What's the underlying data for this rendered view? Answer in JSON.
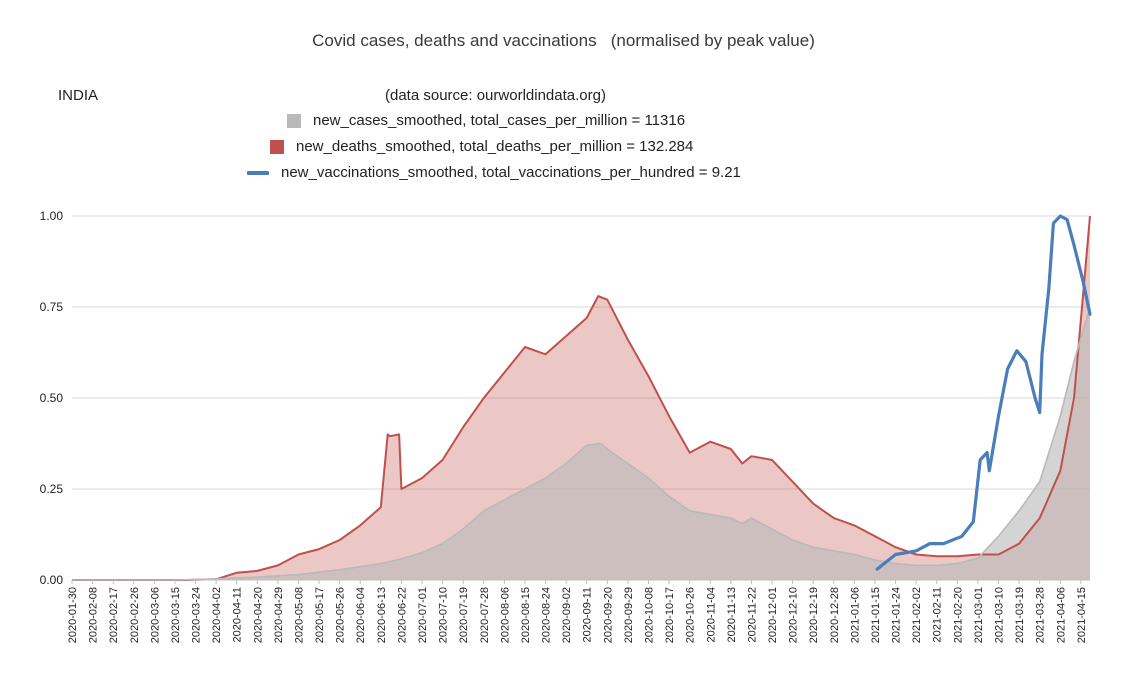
{
  "title": "Covid cases, deaths and vaccinations   (normalised by peak value)",
  "country": "INDIA",
  "source": "(data source: ourworldindata.org)",
  "colors": {
    "cases": "#b9b9b9",
    "deaths": "#c0504d",
    "vaccinations": "#4a7ebb"
  },
  "legend": [
    {
      "label": "new_cases_smoothed,  total_cases_per_million = 11316",
      "kind": "square",
      "color": "#b9b9b9"
    },
    {
      "label": "new_deaths_smoothed,  total_deaths_per_million = 132.284",
      "kind": "square",
      "color": "#c0504d"
    },
    {
      "label": "new_vaccinations_smoothed,  total_vaccinations_per_hundred = 9.21",
      "kind": "line",
      "color": "#4a7ebb"
    }
  ],
  "chart_data": {
    "type": "area",
    "ylim": [
      0,
      1
    ],
    "yticks": [
      "1.00",
      "0.75",
      "0.50",
      "0.25",
      "0.00"
    ],
    "ytick_values": [
      1.0,
      0.75,
      0.5,
      0.25,
      0.0
    ],
    "grid": true,
    "xlim": [
      "2020-01-30",
      "2021-04-19"
    ],
    "xticks": [
      "2020-01-30",
      "2020-02-08",
      "2020-02-17",
      "2020-02-26",
      "2020-03-06",
      "2020-03-15",
      "2020-03-24",
      "2020-04-02",
      "2020-04-11",
      "2020-04-20",
      "2020-04-29",
      "2020-05-08",
      "2020-05-17",
      "2020-05-26",
      "2020-06-04",
      "2020-06-13",
      "2020-06-22",
      "2020-07-01",
      "2020-07-10",
      "2020-07-19",
      "2020-07-28",
      "2020-08-06",
      "2020-08-15",
      "2020-08-24",
      "2020-09-02",
      "2020-09-11",
      "2020-09-20",
      "2020-09-29",
      "2020-10-08",
      "2020-10-17",
      "2020-10-26",
      "2020-11-04",
      "2020-11-13",
      "2020-11-22",
      "2020-12-01",
      "2020-12-10",
      "2020-12-19",
      "2020-12-28",
      "2021-01-06",
      "2021-01-15",
      "2021-01-24",
      "2021-02-02",
      "2021-02-11",
      "2021-02-20",
      "2021-03-01",
      "2021-03-10",
      "2021-03-19",
      "2021-03-28",
      "2021-04-06",
      "2021-04-15"
    ],
    "series": [
      {
        "name": "new_cases_smoothed",
        "style": "area",
        "x": [
          "2020-01-30",
          "2020-03-15",
          "2020-04-02",
          "2020-04-20",
          "2020-05-08",
          "2020-05-26",
          "2020-06-13",
          "2020-06-22",
          "2020-07-01",
          "2020-07-10",
          "2020-07-19",
          "2020-07-28",
          "2020-08-06",
          "2020-08-15",
          "2020-08-24",
          "2020-09-02",
          "2020-09-11",
          "2020-09-17",
          "2020-09-22",
          "2020-09-29",
          "2020-10-08",
          "2020-10-17",
          "2020-10-26",
          "2020-11-04",
          "2020-11-13",
          "2020-11-18",
          "2020-11-22",
          "2020-11-28",
          "2020-12-10",
          "2020-12-19",
          "2020-12-28",
          "2021-01-06",
          "2021-01-15",
          "2021-01-24",
          "2021-02-02",
          "2021-02-11",
          "2021-02-20",
          "2021-03-01",
          "2021-03-10",
          "2021-03-19",
          "2021-03-28",
          "2021-04-06",
          "2021-04-12",
          "2021-04-19"
        ],
        "y": [
          0,
          0,
          0.003,
          0.008,
          0.015,
          0.028,
          0.045,
          0.058,
          0.075,
          0.1,
          0.14,
          0.19,
          0.22,
          0.25,
          0.28,
          0.32,
          0.37,
          0.375,
          0.35,
          0.32,
          0.28,
          0.23,
          0.19,
          0.18,
          0.17,
          0.155,
          0.17,
          0.15,
          0.11,
          0.09,
          0.08,
          0.07,
          0.055,
          0.045,
          0.04,
          0.04,
          0.045,
          0.06,
          0.12,
          0.19,
          0.27,
          0.45,
          0.6,
          0.75
        ]
      },
      {
        "name": "new_deaths_smoothed",
        "style": "area",
        "x": [
          "2020-01-30",
          "2020-03-20",
          "2020-04-02",
          "2020-04-11",
          "2020-04-20",
          "2020-04-29",
          "2020-05-08",
          "2020-05-17",
          "2020-05-26",
          "2020-06-04",
          "2020-06-13",
          "2020-06-16",
          "2020-06-17",
          "2020-06-21",
          "2020-06-22",
          "2020-07-01",
          "2020-07-10",
          "2020-07-19",
          "2020-07-28",
          "2020-08-06",
          "2020-08-15",
          "2020-08-24",
          "2020-09-02",
          "2020-09-11",
          "2020-09-16",
          "2020-09-20",
          "2020-09-29",
          "2020-10-08",
          "2020-10-17",
          "2020-10-26",
          "2020-11-04",
          "2020-11-13",
          "2020-11-18",
          "2020-11-22",
          "2020-12-01",
          "2020-12-10",
          "2020-12-19",
          "2020-12-28",
          "2021-01-06",
          "2021-01-15",
          "2021-01-24",
          "2021-02-02",
          "2021-02-11",
          "2021-02-20",
          "2021-03-01",
          "2021-03-10",
          "2021-03-19",
          "2021-03-28",
          "2021-04-06",
          "2021-04-12",
          "2021-04-19"
        ],
        "y": [
          0,
          0,
          0.002,
          0.02,
          0.025,
          0.04,
          0.07,
          0.085,
          0.11,
          0.15,
          0.2,
          0.4,
          0.395,
          0.4,
          0.25,
          0.28,
          0.33,
          0.42,
          0.5,
          0.57,
          0.64,
          0.62,
          0.67,
          0.72,
          0.78,
          0.77,
          0.66,
          0.56,
          0.45,
          0.35,
          0.38,
          0.36,
          0.32,
          0.34,
          0.33,
          0.27,
          0.21,
          0.17,
          0.15,
          0.12,
          0.09,
          0.07,
          0.065,
          0.065,
          0.07,
          0.07,
          0.1,
          0.17,
          0.3,
          0.5,
          1.0
        ]
      },
      {
        "name": "new_vaccinations_smoothed",
        "style": "line",
        "x": [
          "2021-01-16",
          "2021-01-20",
          "2021-01-24",
          "2021-02-02",
          "2021-02-08",
          "2021-02-14",
          "2021-02-22",
          "2021-02-27",
          "2021-03-02",
          "2021-03-05",
          "2021-03-06",
          "2021-03-10",
          "2021-03-14",
          "2021-03-18",
          "2021-03-22",
          "2021-03-26",
          "2021-03-28",
          "2021-03-29",
          "2021-04-01",
          "2021-04-03",
          "2021-04-06",
          "2021-04-09",
          "2021-04-12",
          "2021-04-16",
          "2021-04-19"
        ],
        "y": [
          0.03,
          0.05,
          0.07,
          0.08,
          0.1,
          0.1,
          0.12,
          0.16,
          0.33,
          0.35,
          0.3,
          0.45,
          0.58,
          0.63,
          0.6,
          0.5,
          0.46,
          0.62,
          0.8,
          0.98,
          1.0,
          0.99,
          0.92,
          0.82,
          0.73
        ]
      }
    ]
  }
}
